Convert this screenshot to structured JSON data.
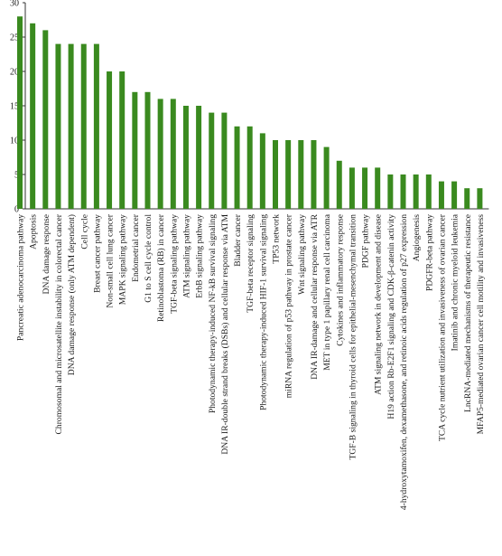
{
  "chart_data": {
    "type": "bar",
    "title": "",
    "xlabel": "",
    "ylabel": "",
    "ylim": [
      0,
      30
    ],
    "yticks": [
      0,
      5,
      10,
      15,
      20,
      25,
      30
    ],
    "grid": false,
    "bar_color": "#3a8a1f",
    "categories": [
      "Pancreatic adenocarcinoma pathway",
      "Apoptosis",
      "DNA damage response",
      "Chromosomal and microsatellite instability in colorectal cancer",
      "DNA damage response (only ATM dependent)",
      "Cell cycle",
      "Breast cancer pathway",
      "Non-small cell lung cancer",
      "MAPK signaling pathway",
      "Endometrial cancer",
      "G1 to S cell cycle control",
      "Retinoblastoma (RB) in cancer",
      "TGF-beta signaling pathway",
      "ATM signaling pathway",
      "ErbB signaling pathway",
      "Photodynamic therapy-induced NF-kB survival signaling",
      "DNA IR-double strand breaks (DSBs) and cellular response via ATM",
      "Bladder cancer",
      "TGF-beta receptor signaling",
      "Photodynamic therapy-induced HIF-1 survival signaling",
      "TP53 network",
      "miRNA regulation of p53 pathway in prostate cancer",
      "Wnt signaling pathway",
      "DNA IR-damage and cellular response via ATR",
      "MET in type 1 papillary renal cell carcinoma",
      "Cytokines and inflammatory response",
      "TGF-B signaling in thyroid cells for epithelial-mesenchymal transition",
      "PDGF pathway",
      "ATM signaling network in development and disease",
      "H19 action Rb-E2F1 signaling and CDK-β-catenin activity",
      "4-hydroxytamoxifen, dexamethasone, and retinoic acids regulation of p27 expression",
      "Angiogenesis",
      "PDGFR-beta pathway",
      "TCA cycle nutrient utilization and invasiveness of ovarian cancer",
      "Imatinib and chronic myeloid leukemia",
      "LncRNA-mediated mechanisms of therapeutic resistance",
      "MFAP5-mediated ovarian cancer cell motility and invasiveness"
    ],
    "values": [
      28,
      27,
      26,
      24,
      24,
      24,
      24,
      20,
      20,
      17,
      17,
      16,
      16,
      15,
      15,
      14,
      14,
      12,
      12,
      11,
      10,
      10,
      10,
      10,
      9,
      7,
      6,
      6,
      6,
      5,
      5,
      5,
      5,
      4,
      4,
      3,
      3
    ]
  }
}
